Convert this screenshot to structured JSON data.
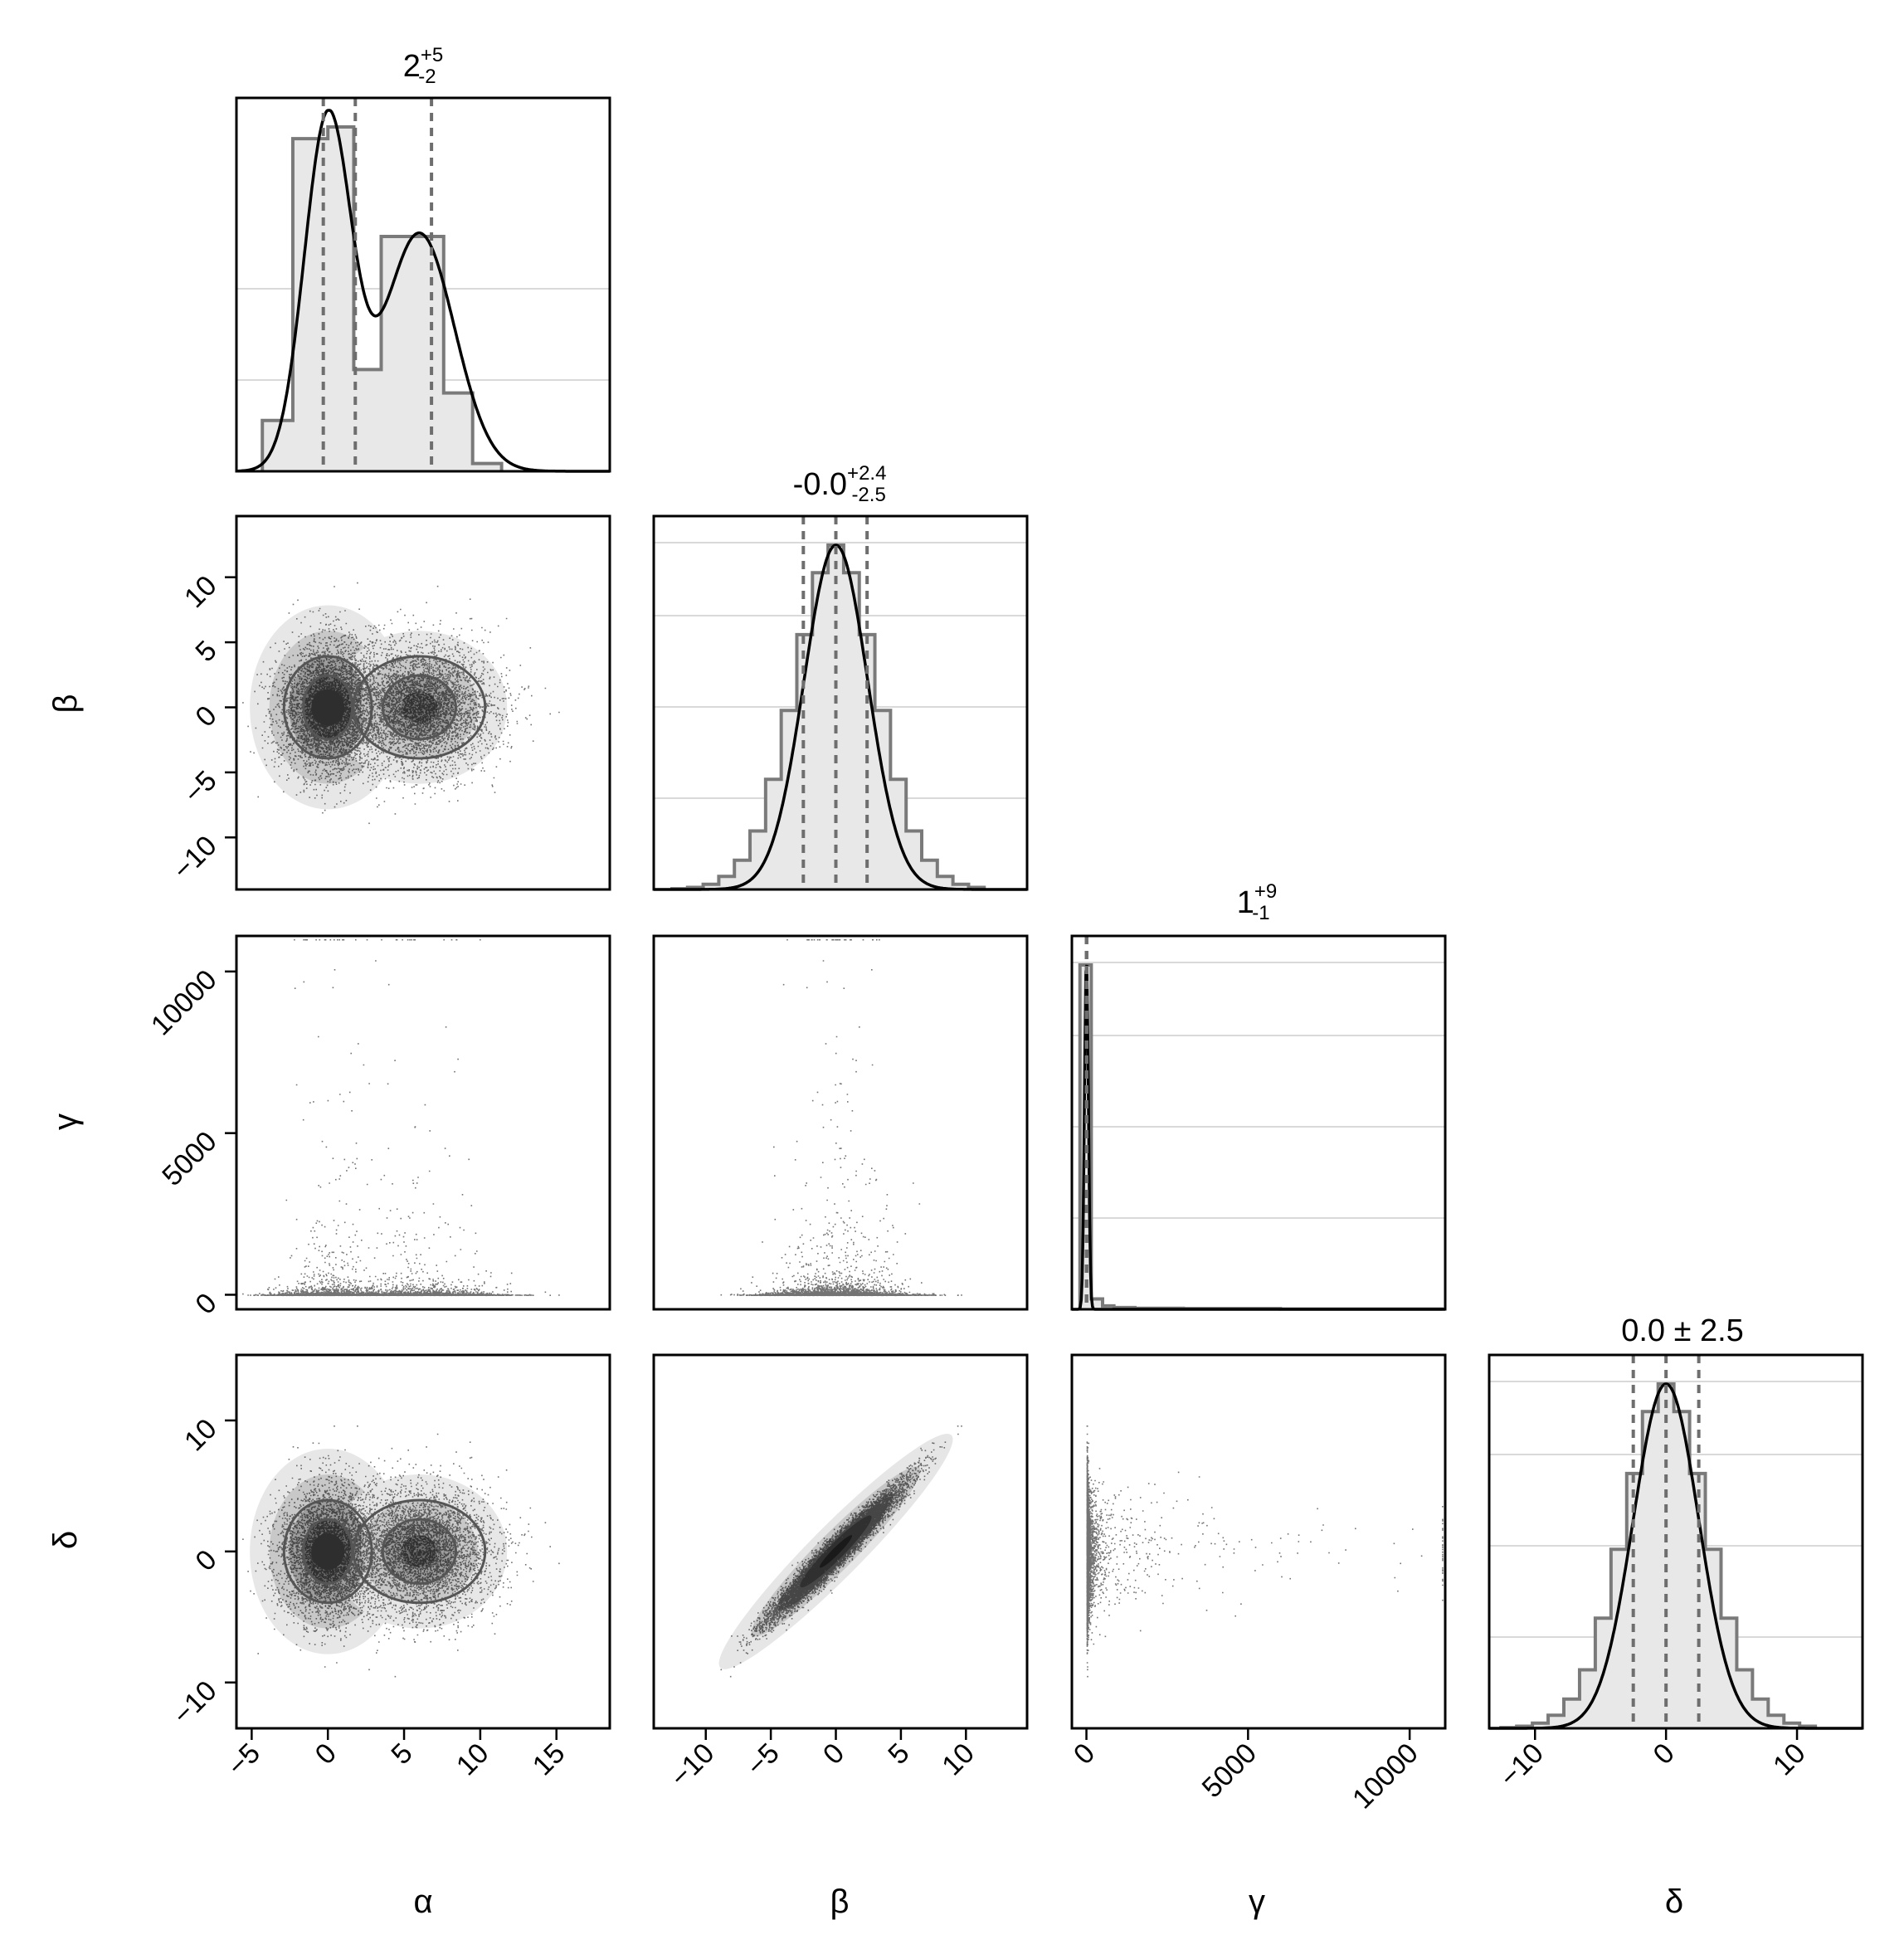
{
  "chart_data": {
    "type": "corner",
    "parameters": [
      "α",
      "β",
      "γ",
      "δ"
    ],
    "titles": [
      {
        "value": "2",
        "plus": "+5",
        "minus": "-2"
      },
      {
        "value": "-0.0",
        "plus": "+2.4",
        "minus": "-2.5"
      },
      {
        "value": "1",
        "plus": "+9",
        "minus": "-1"
      },
      {
        "text": "0.0 ± 2.5"
      }
    ],
    "ranges": {
      "α": [
        -6,
        18.5
      ],
      "β": [
        -14,
        14.7
      ],
      "γ": [
        -450,
        11100
      ],
      "δ": [
        -13.5,
        15
      ]
    },
    "ticks": {
      "α": {
        "values": [
          -5,
          0,
          5,
          10,
          15
        ],
        "labels": [
          "−5",
          "0",
          "5",
          "10",
          "15"
        ]
      },
      "β": {
        "values": [
          -10,
          -5,
          0,
          5,
          10
        ],
        "labels": [
          "−10",
          "−5",
          "0",
          "5",
          "10"
        ]
      },
      "γ": {
        "values": [
          0,
          5000,
          10000
        ],
        "labels": [
          "0",
          "5000",
          "10000"
        ]
      },
      "δ": {
        "values": [
          -10,
          0,
          10
        ],
        "labels": [
          "−10",
          "0",
          "10"
        ]
      }
    },
    "y_tick_params": {
      "β": {
        "values": [
          -10,
          -5,
          0,
          5,
          10
        ],
        "labels": [
          "−10",
          "−5",
          "0",
          "5",
          "10"
        ]
      },
      "γ": {
        "values": [
          0,
          5000,
          10000
        ],
        "labels": [
          "0",
          "5000",
          "10000"
        ]
      },
      "δ": {
        "values": [
          -10,
          0,
          10
        ],
        "labels": [
          "−10",
          "0",
          "10"
        ]
      }
    },
    "quantiles": {
      "α": [
        -0.3,
        1.8,
        6.8
      ],
      "β": [
        -2.5,
        0.0,
        2.4
      ],
      "γ": [
        0.1,
        1,
        10
      ],
      "δ": [
        -2.5,
        0.0,
        2.5
      ]
    },
    "histograms": {
      "α": {
        "edges": [
          -4.3,
          -2.3,
          0.0,
          1.7,
          3.5,
          5.6,
          7.6,
          9.5,
          11.4
        ],
        "counts": [
          0.13,
          0.85,
          0.88,
          0.26,
          0.6,
          0.6,
          0.2,
          0.02
        ]
      },
      "β": {
        "edges": [
          -12.6,
          -11.4,
          -10.2,
          -9.0,
          -7.8,
          -6.6,
          -5.4,
          -4.2,
          -3.0,
          -1.8,
          -0.6,
          0.6,
          1.8,
          3.0,
          4.2,
          5.4,
          6.6,
          7.8,
          9.0,
          10.2,
          11.4
        ],
        "counts": [
          0.002,
          0.006,
          0.015,
          0.038,
          0.085,
          0.17,
          0.32,
          0.52,
          0.74,
          0.92,
          1.0,
          0.92,
          0.74,
          0.52,
          0.32,
          0.17,
          0.085,
          0.038,
          0.015,
          0.006
        ]
      },
      "γ": {
        "edges": [
          -200,
          150,
          500,
          850,
          1500,
          3000,
          6000,
          11000
        ],
        "counts": [
          1.0,
          0.03,
          0.01,
          0.005,
          0.003,
          0.002,
          0.001
        ]
      },
      "δ": {
        "edges": [
          -12.6,
          -11.4,
          -10.2,
          -9.0,
          -7.8,
          -6.6,
          -5.4,
          -4.2,
          -3.0,
          -1.8,
          -0.6,
          0.6,
          1.8,
          3.0,
          4.2,
          5.4,
          6.6,
          7.8,
          9.0,
          10.2,
          11.4
        ],
        "counts": [
          0.002,
          0.006,
          0.015,
          0.038,
          0.085,
          0.17,
          0.32,
          0.52,
          0.74,
          0.92,
          1.0,
          0.92,
          0.74,
          0.52,
          0.32,
          0.17,
          0.085,
          0.038,
          0.015,
          0.006
        ]
      }
    },
    "kde": {
      "α": {
        "components": [
          {
            "weight": 0.5,
            "mean": 0.0,
            "sd": 1.55
          },
          {
            "weight": 0.5,
            "mean": 6.0,
            "sd": 2.3
          }
        ]
      },
      "β": {
        "components": [
          {
            "weight": 1.0,
            "mean": 0.0,
            "sd": 2.45
          }
        ]
      },
      "γ": {
        "components": [
          {
            "weight": 1.0,
            "mean": 0.0,
            "sd": 60
          }
        ]
      },
      "δ": {
        "components": [
          {
            "weight": 1.0,
            "mean": 0.0,
            "sd": 2.5
          }
        ]
      }
    },
    "scatter_model": {
      "α": {
        "components": [
          {
            "weight": 0.5,
            "mean": 0.0,
            "sd": 1.6
          },
          {
            "weight": 0.5,
            "mean": 6.0,
            "sd": 2.4
          }
        ]
      },
      "β": {
        "sd": 2.45
      },
      "γ": {
        "scale": 2.0,
        "tail_power": 1.0
      },
      "δ": {
        "corr_with_β": 0.97,
        "sd": 2.5
      }
    },
    "contour_shading": [
      "#3a3a3a",
      "#6a6a6a",
      "#9b9b9b",
      "#c6c6c6",
      "#e6e6e6"
    ]
  }
}
